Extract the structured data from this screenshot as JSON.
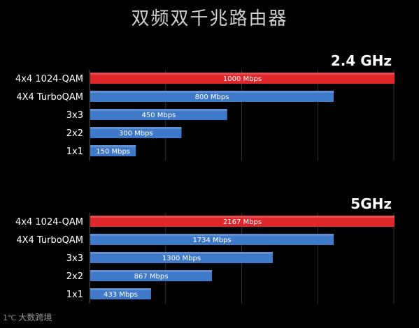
{
  "title": "双频双千兆路由器",
  "watermark": "大数跨境",
  "colors": {
    "highlight_bar": "#e0262a",
    "normal_bar": "#3f79c9",
    "bar_label": "#ffffff",
    "category_label": "#ffffff",
    "grid": "#333333"
  },
  "chart_data": [
    {
      "type": "bar",
      "orientation": "horizontal",
      "band_label": "2.4 GHz",
      "categories": [
        "4x4 1024-QAM",
        "4X4 TurboQAM",
        "3x3",
        "2x2",
        "1x1"
      ],
      "values": [
        1000,
        800,
        450,
        300,
        150
      ],
      "data_labels": [
        "1000 Mbps",
        "800 Mbps",
        "450 Mbps",
        "300 Mbps",
        "150 Mbps"
      ],
      "highlight_index": 0,
      "xlim": [
        0,
        1000
      ]
    },
    {
      "type": "bar",
      "orientation": "horizontal",
      "band_label": "5GHz",
      "categories": [
        "4x4 1024-QAM",
        "4X4 TurboQAM",
        "3x3",
        "2x2",
        "1x1"
      ],
      "values": [
        2167,
        1734,
        1300,
        867,
        433
      ],
      "data_labels": [
        "2167 Mbps",
        "1734 Mbps",
        "1300 Mbps",
        "867 Mbps",
        "433 Mbps"
      ],
      "highlight_index": 0,
      "xlim": [
        0,
        2167
      ]
    }
  ]
}
